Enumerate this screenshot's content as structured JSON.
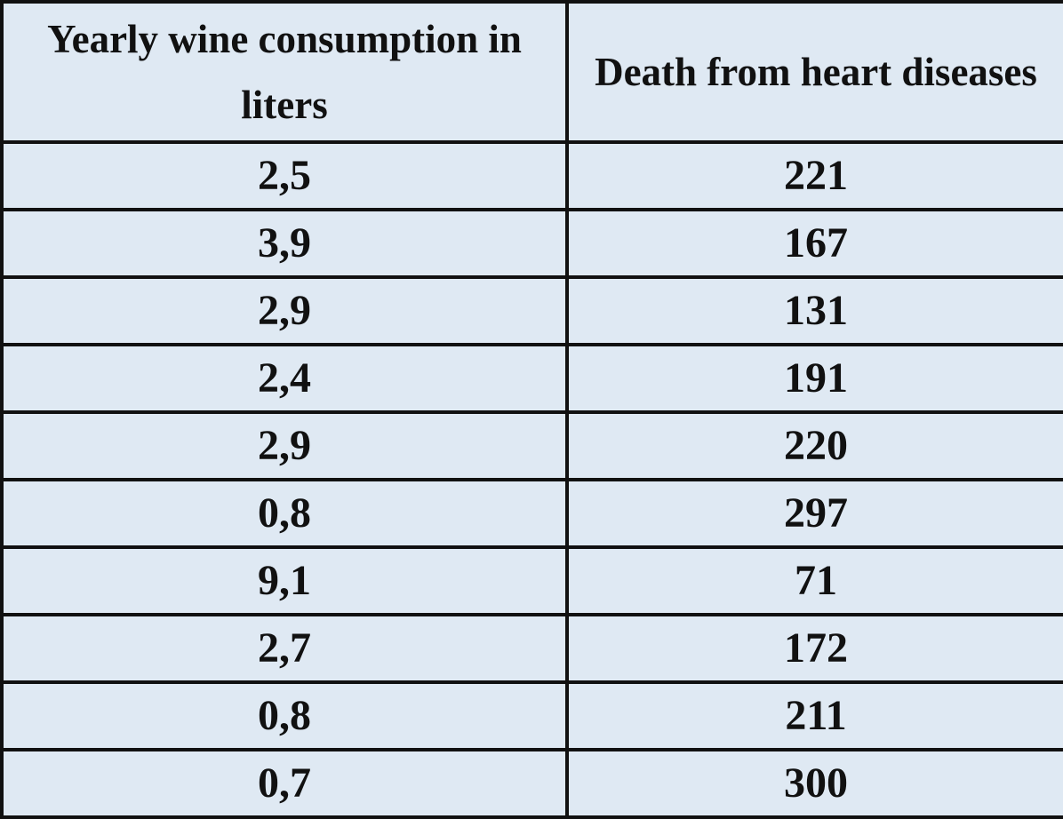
{
  "chart_data": {
    "type": "table",
    "columns": [
      "Yearly wine consumption in liters",
      "Death from heart diseases"
    ],
    "rows": [
      [
        "2,5",
        "221"
      ],
      [
        "3,9",
        "167"
      ],
      [
        "2,9",
        "131"
      ],
      [
        "2,4",
        "191"
      ],
      [
        "2,9",
        "220"
      ],
      [
        "0,8",
        "297"
      ],
      [
        "9,1",
        "71"
      ],
      [
        "2,7",
        "172"
      ],
      [
        "0,8",
        "211"
      ],
      [
        "0,7",
        "300"
      ]
    ]
  }
}
